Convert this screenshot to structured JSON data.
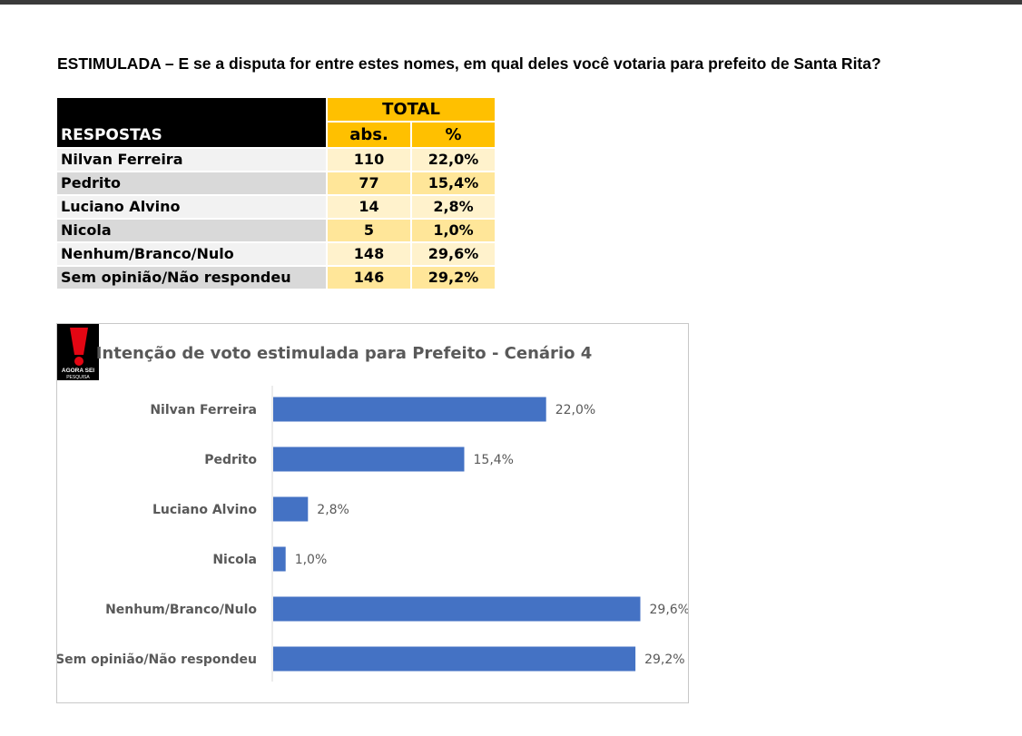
{
  "question": "ESTIMULADA – E se a disputa for entre estes nomes, em qual deles você votaria para prefeito de Santa Rita?",
  "table": {
    "col_respostas": "RESPOSTAS",
    "col_total": "TOTAL",
    "col_abs": "abs.",
    "col_pct": "%",
    "rows": [
      {
        "name": "Nilvan Ferreira",
        "abs": "110",
        "pct": "22,0%"
      },
      {
        "name": "Pedrito",
        "abs": "77",
        "pct": "15,4%"
      },
      {
        "name": "Luciano Alvino",
        "abs": "14",
        "pct": "2,8%"
      },
      {
        "name": "Nicola",
        "abs": "5",
        "pct": "1,0%"
      },
      {
        "name": "Nenhum/Branco/Nulo",
        "abs": "148",
        "pct": "29,6%"
      },
      {
        "name": "Sem opinião/Não respondeu",
        "abs": "146",
        "pct": "29,2%"
      }
    ]
  },
  "logo": {
    "text_line1": "AGORA SEI",
    "text_line2": "PESQUISA",
    "color_red": "#e30613",
    "color_black": "#000000"
  },
  "chart_data": {
    "type": "bar",
    "orientation": "horizontal",
    "title": "Intenção de voto estimulada para Prefeito - Cenário 4",
    "categories": [
      "Nilvan Ferreira",
      "Pedrito",
      "Luciano Alvino",
      "Nicola",
      "Nenhum/Branco/Nulo",
      "Sem opinião/Não respondeu"
    ],
    "values": [
      22.0,
      15.4,
      2.8,
      1.0,
      29.6,
      29.2
    ],
    "data_labels": [
      "22,0%",
      "15,4%",
      "2,8%",
      "1,0%",
      "29,6%",
      "29,2%"
    ],
    "xlim": [
      0,
      30
    ],
    "grid": false,
    "legend": "none",
    "bar_color": "#4472c4"
  }
}
